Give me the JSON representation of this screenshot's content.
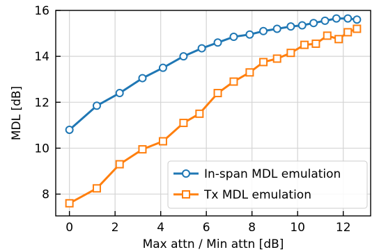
{
  "chart_data": {
    "type": "line",
    "xlabel": "Max attn / Min attn [dB]",
    "ylabel": "MDL [dB]",
    "xlim": [
      -0.6,
      13.2
    ],
    "ylim": [
      7.05,
      16
    ],
    "xticks": [
      0,
      2,
      4,
      6,
      8,
      10,
      12
    ],
    "yticks": [
      8,
      10,
      12,
      14,
      16
    ],
    "grid": true,
    "legend_position": "lower-right",
    "series": [
      {
        "name": "In-span MDL emulation",
        "color": "#1f77b4",
        "marker": "circle",
        "x": [
          0,
          1.2,
          2.2,
          3.2,
          4.1,
          5.0,
          5.8,
          6.5,
          7.2,
          7.9,
          8.5,
          9.1,
          9.7,
          10.2,
          10.7,
          11.2,
          11.7,
          12.2,
          12.6
        ],
        "y": [
          10.8,
          11.85,
          12.4,
          13.05,
          13.5,
          14.0,
          14.35,
          14.6,
          14.85,
          14.95,
          15.1,
          15.2,
          15.3,
          15.35,
          15.45,
          15.55,
          15.65,
          15.65,
          15.6
        ]
      },
      {
        "name": "Tx MDL emulation",
        "color": "#ff7f0e",
        "marker": "square",
        "x": [
          0,
          1.2,
          2.2,
          3.2,
          4.1,
          5.0,
          5.7,
          6.5,
          7.2,
          7.9,
          8.5,
          9.1,
          9.7,
          10.3,
          10.8,
          11.3,
          11.8,
          12.2,
          12.6
        ],
        "y": [
          7.6,
          8.25,
          9.3,
          9.95,
          10.3,
          11.1,
          11.5,
          12.4,
          12.9,
          13.3,
          13.75,
          13.9,
          14.15,
          14.5,
          14.55,
          14.9,
          14.75,
          15.05,
          15.2
        ]
      }
    ]
  }
}
